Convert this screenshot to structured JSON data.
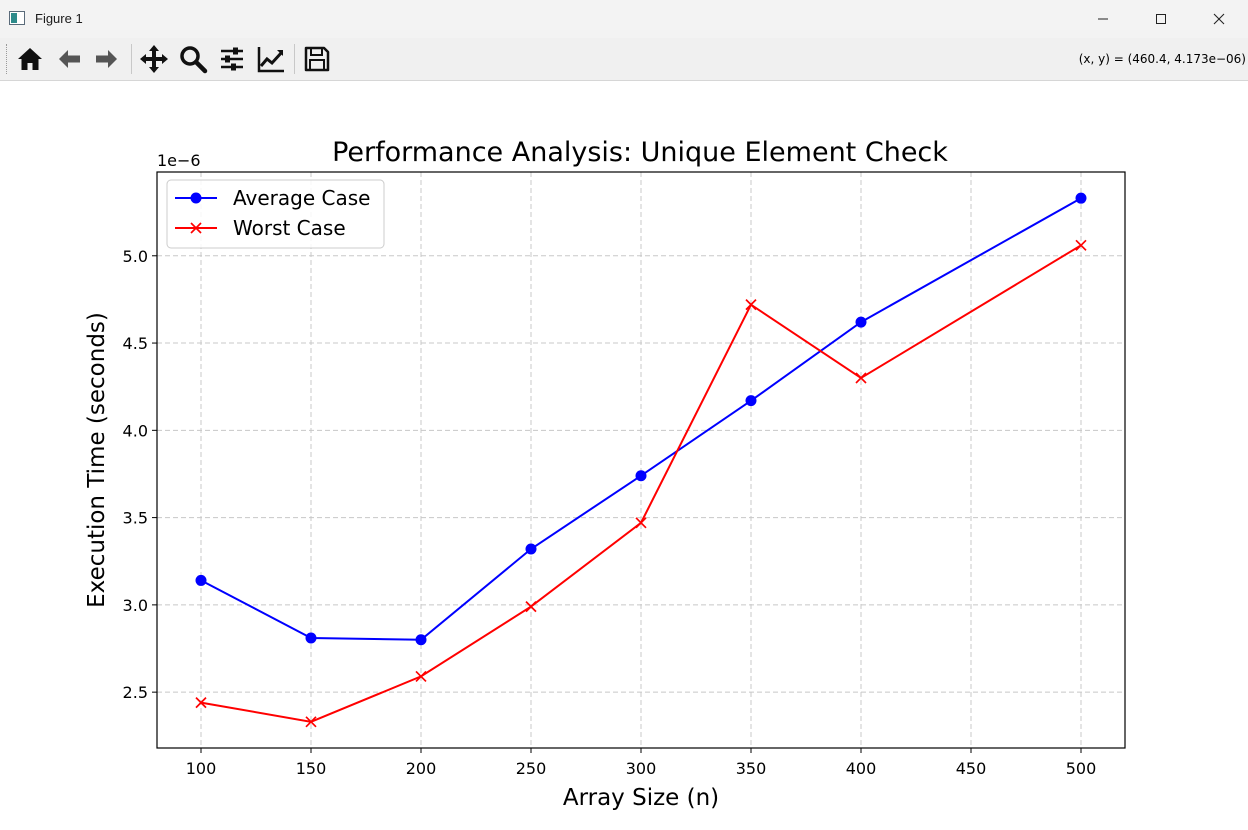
{
  "window": {
    "title": "Figure 1"
  },
  "toolbar": {
    "buttons": [
      "home-icon",
      "back-arrow-icon",
      "forward-arrow-icon",
      "pan-icon",
      "zoom-icon",
      "configure-subplots-icon",
      "edit-axes-icon",
      "save-icon"
    ],
    "coords_text": "(x, y) = (460.4, 4.173e−06)"
  },
  "colors": {
    "average": "#0000ff",
    "worst": "#ff0000",
    "grid": "#c8c8c8"
  },
  "chart_data": {
    "type": "line",
    "title": "Performance Analysis: Unique Element Check",
    "xlabel": "Array Size (n)",
    "ylabel": "Execution Time (seconds)",
    "offset_text": "1e−6",
    "x": [
      100,
      150,
      200,
      250,
      300,
      350,
      400,
      450,
      500
    ],
    "xticks": [
      100,
      150,
      200,
      250,
      300,
      350,
      400,
      450,
      500
    ],
    "yticks": [
      2.5,
      3.0,
      3.5,
      4.0,
      4.5,
      5.0
    ],
    "xlim": [
      80,
      520
    ],
    "ylim": [
      2.18,
      5.48
    ],
    "grid": true,
    "legend_position": "upper-left",
    "series": [
      {
        "name": "Average Case",
        "marker": "circle",
        "color": "#0000ff",
        "points": [
          [
            100,
            3.14
          ],
          [
            150,
            2.81
          ],
          [
            200,
            2.8
          ],
          [
            250,
            3.32
          ],
          [
            300,
            3.74
          ],
          [
            350,
            4.17
          ],
          [
            400,
            4.62
          ],
          [
            500,
            5.33
          ]
        ]
      },
      {
        "name": "Worst Case",
        "marker": "x",
        "color": "#ff0000",
        "points": [
          [
            100,
            2.44
          ],
          [
            150,
            2.33
          ],
          [
            200,
            2.59
          ],
          [
            250,
            2.99
          ],
          [
            300,
            3.47
          ],
          [
            350,
            4.72
          ],
          [
            400,
            4.3
          ],
          [
            500,
            5.06
          ]
        ]
      }
    ]
  }
}
